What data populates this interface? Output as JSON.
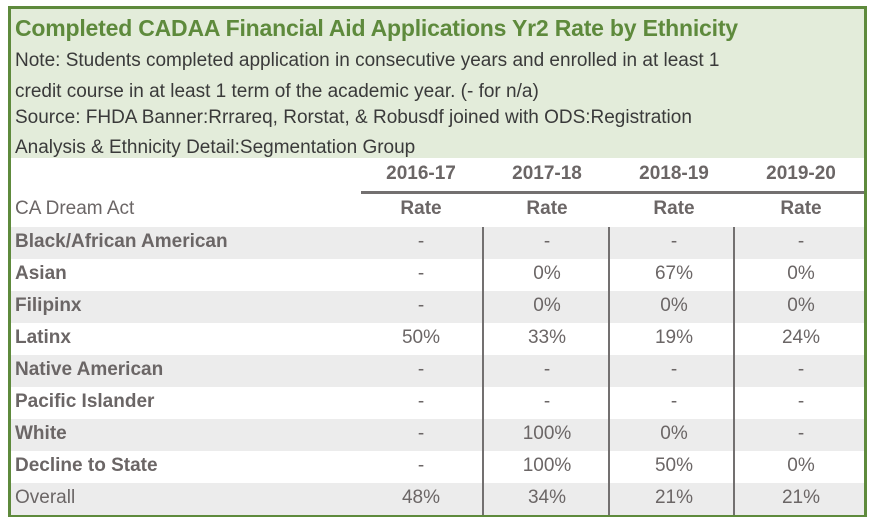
{
  "title": "Completed CADAA Financial Aid Applications Yr2 Rate by Ethnicity",
  "notes": [
    "Note: Students completed application in consecutive years and enrolled in at least 1",
    "credit course in at least 1 term of the academic year. (- for n/a)",
    "Source: FHDA Banner:Rrrareq, Rorstat, & Robusdf joined with ODS:Registration",
    "Analysis & Ethnicity Detail:Segmentation Group"
  ],
  "colors": {
    "accent": "#5e8a3c",
    "header_bg": "#e3ecda",
    "row_shade": "#ececec",
    "text": "#6b6666"
  },
  "table": {
    "row_header_label": "CA Dream Act",
    "years": [
      "2016-17",
      "2017-18",
      "2018-19",
      "2019-20"
    ],
    "subheaders": [
      "Rate",
      "Rate",
      "Rate",
      "Rate"
    ],
    "rows": [
      {
        "label": "Black/African American",
        "values": [
          "-",
          "-",
          "-",
          "-"
        ]
      },
      {
        "label": "Asian",
        "values": [
          "-",
          "0%",
          "67%",
          "0%"
        ]
      },
      {
        "label": "Filipinx",
        "values": [
          "-",
          "0%",
          "0%",
          "0%"
        ]
      },
      {
        "label": "Latinx",
        "values": [
          "50%",
          "33%",
          "19%",
          "24%"
        ]
      },
      {
        "label": "Native American",
        "values": [
          "-",
          "-",
          "-",
          "-"
        ]
      },
      {
        "label": "Pacific Islander",
        "values": [
          "-",
          "-",
          "-",
          "-"
        ]
      },
      {
        "label": "White",
        "values": [
          "-",
          "100%",
          "0%",
          "-"
        ]
      },
      {
        "label": "Decline to State",
        "values": [
          "-",
          "100%",
          "50%",
          "0%"
        ]
      },
      {
        "label": "Overall",
        "values": [
          "48%",
          "34%",
          "21%",
          "21%"
        ]
      }
    ]
  }
}
